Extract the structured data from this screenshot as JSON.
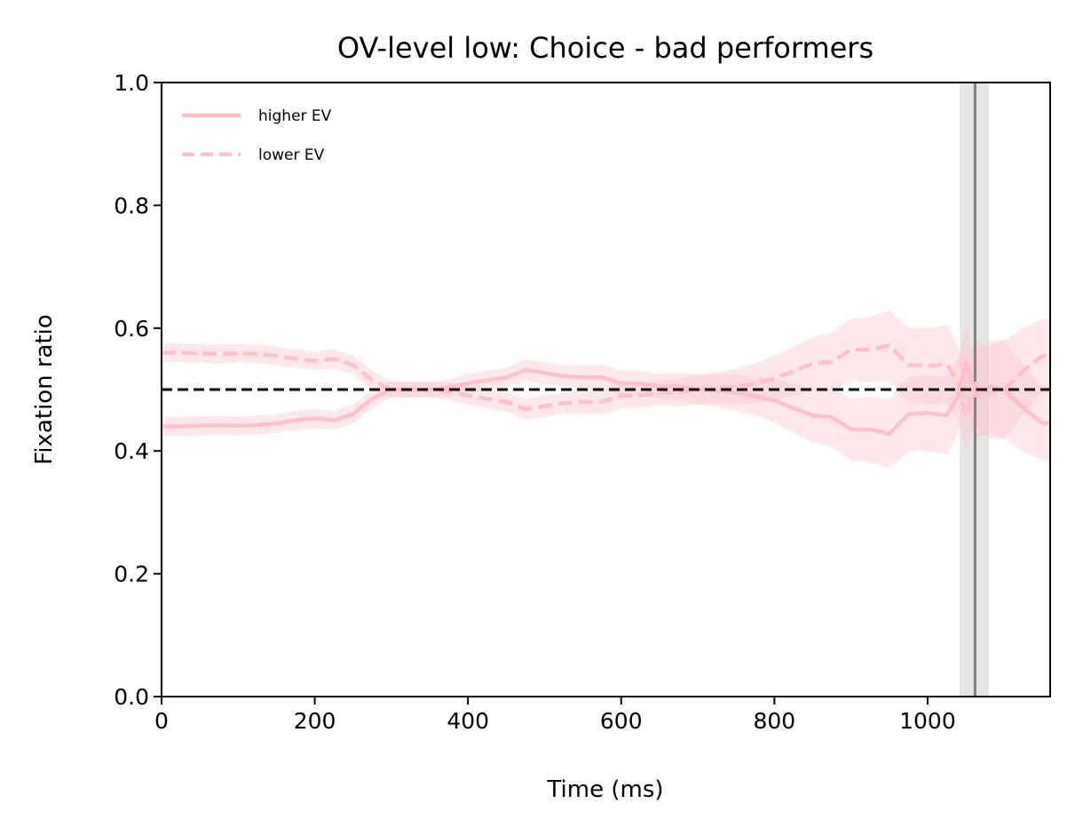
{
  "chart_data": {
    "type": "line",
    "title": "OV-level low: Choice - bad performers",
    "xlabel": "Time (ms)",
    "ylabel": "Fixation ratio",
    "xlim": [
      0,
      1160
    ],
    "ylim": [
      0.0,
      1.0
    ],
    "xticks": [
      0,
      200,
      400,
      600,
      800,
      1000
    ],
    "yticks": [
      0.0,
      0.2,
      0.4,
      0.6,
      0.8,
      1.0
    ],
    "xtick_labels": [
      "0",
      "200",
      "400",
      "600",
      "800",
      "1000"
    ],
    "ytick_labels": [
      "0.0",
      "0.2",
      "0.4",
      "0.6",
      "0.8",
      "1.0"
    ],
    "grid": false,
    "legend_position": "top-left",
    "reference_line": {
      "y": 0.5,
      "style": "dashed",
      "color": "#000000"
    },
    "vertical_marker": {
      "x": 1062,
      "band": [
        1042,
        1080
      ],
      "color": "#808080",
      "band_color": "#d9d9d9"
    },
    "series": [
      {
        "name": "higher EV",
        "style": "solid",
        "color": "#ffc0cb",
        "x": [
          0,
          25,
          50,
          75,
          100,
          125,
          150,
          175,
          200,
          225,
          250,
          275,
          300,
          325,
          350,
          375,
          400,
          425,
          450,
          475,
          500,
          525,
          550,
          575,
          600,
          625,
          650,
          675,
          700,
          725,
          750,
          775,
          800,
          825,
          850,
          875,
          900,
          925,
          950,
          975,
          1000,
          1025,
          1040,
          1050,
          1062,
          1080,
          1100,
          1125,
          1150,
          1160
        ],
        "y": [
          0.44,
          0.44,
          0.441,
          0.442,
          0.441,
          0.442,
          0.445,
          0.45,
          0.453,
          0.45,
          0.46,
          0.485,
          0.5,
          0.5,
          0.5,
          0.503,
          0.51,
          0.515,
          0.52,
          0.532,
          0.527,
          0.522,
          0.52,
          0.52,
          0.51,
          0.51,
          0.505,
          0.505,
          0.5,
          0.498,
          0.495,
          0.49,
          0.482,
          0.47,
          0.458,
          0.455,
          0.435,
          0.435,
          0.428,
          0.46,
          0.462,
          0.458,
          0.49,
          0.545,
          0.49,
          0.505,
          0.5,
          0.47,
          0.445,
          0.445
        ],
        "band_low": [
          0.425,
          0.425,
          0.426,
          0.427,
          0.426,
          0.427,
          0.43,
          0.435,
          0.438,
          0.435,
          0.445,
          0.47,
          0.487,
          0.488,
          0.488,
          0.49,
          0.495,
          0.5,
          0.505,
          0.515,
          0.51,
          0.505,
          0.502,
          0.5,
          0.49,
          0.49,
          0.485,
          0.483,
          0.476,
          0.472,
          0.466,
          0.458,
          0.446,
          0.43,
          0.415,
          0.408,
          0.385,
          0.382,
          0.372,
          0.4,
          0.4,
          0.395,
          0.43,
          0.49,
          0.42,
          0.43,
          0.42,
          0.4,
          0.385,
          0.385
        ],
        "band_high": [
          0.455,
          0.455,
          0.456,
          0.457,
          0.456,
          0.457,
          0.46,
          0.465,
          0.468,
          0.465,
          0.475,
          0.5,
          0.513,
          0.512,
          0.512,
          0.516,
          0.525,
          0.53,
          0.535,
          0.549,
          0.544,
          0.539,
          0.538,
          0.54,
          0.53,
          0.53,
          0.525,
          0.527,
          0.524,
          0.524,
          0.524,
          0.522,
          0.518,
          0.51,
          0.501,
          0.502,
          0.485,
          0.488,
          0.484,
          0.52,
          0.524,
          0.521,
          0.55,
          0.6,
          0.56,
          0.58,
          0.58,
          0.54,
          0.505,
          0.505
        ]
      },
      {
        "name": "lower EV",
        "style": "dashed",
        "color": "#ffc0cb",
        "x": [
          0,
          25,
          50,
          75,
          100,
          125,
          150,
          175,
          200,
          225,
          250,
          275,
          300,
          325,
          350,
          375,
          400,
          425,
          450,
          475,
          500,
          525,
          550,
          575,
          600,
          625,
          650,
          675,
          700,
          725,
          750,
          775,
          800,
          825,
          850,
          875,
          900,
          925,
          950,
          975,
          1000,
          1025,
          1040,
          1050,
          1062,
          1080,
          1100,
          1125,
          1150,
          1160
        ],
        "y": [
          0.56,
          0.56,
          0.559,
          0.558,
          0.559,
          0.558,
          0.555,
          0.55,
          0.547,
          0.55,
          0.54,
          0.515,
          0.5,
          0.5,
          0.5,
          0.497,
          0.49,
          0.485,
          0.48,
          0.468,
          0.473,
          0.478,
          0.48,
          0.48,
          0.49,
          0.49,
          0.495,
          0.495,
          0.5,
          0.502,
          0.505,
          0.51,
          0.518,
          0.53,
          0.542,
          0.545,
          0.565,
          0.565,
          0.572,
          0.54,
          0.538,
          0.542,
          0.51,
          0.455,
          0.51,
          0.495,
          0.5,
          0.53,
          0.555,
          0.555
        ],
        "band_low": [
          0.545,
          0.545,
          0.544,
          0.543,
          0.544,
          0.543,
          0.54,
          0.535,
          0.532,
          0.535,
          0.525,
          0.5,
          0.487,
          0.488,
          0.488,
          0.484,
          0.475,
          0.47,
          0.465,
          0.451,
          0.456,
          0.461,
          0.462,
          0.46,
          0.47,
          0.47,
          0.475,
          0.473,
          0.476,
          0.478,
          0.476,
          0.478,
          0.482,
          0.49,
          0.499,
          0.498,
          0.515,
          0.512,
          0.516,
          0.48,
          0.476,
          0.479,
          0.45,
          0.4,
          0.44,
          0.42,
          0.42,
          0.46,
          0.495,
          0.495
        ],
        "band_high": [
          0.575,
          0.575,
          0.574,
          0.573,
          0.574,
          0.573,
          0.57,
          0.565,
          0.562,
          0.565,
          0.555,
          0.53,
          0.513,
          0.512,
          0.512,
          0.51,
          0.505,
          0.5,
          0.495,
          0.485,
          0.49,
          0.495,
          0.498,
          0.5,
          0.51,
          0.51,
          0.515,
          0.517,
          0.524,
          0.528,
          0.534,
          0.542,
          0.554,
          0.57,
          0.585,
          0.592,
          0.615,
          0.618,
          0.628,
          0.6,
          0.6,
          0.605,
          0.57,
          0.51,
          0.58,
          0.57,
          0.58,
          0.6,
          0.615,
          0.615
        ]
      }
    ]
  }
}
